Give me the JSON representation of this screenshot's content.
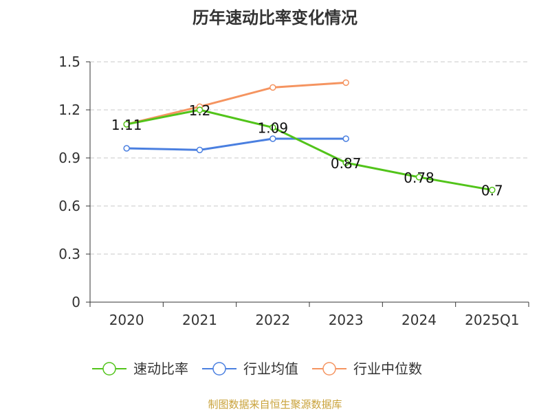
{
  "title": "历年速动比率变化情况",
  "source": "制图数据来自恒生聚源数据库",
  "chart_data": {
    "type": "line",
    "categories": [
      "2020",
      "2021",
      "2022",
      "2023",
      "2024",
      "2025Q1"
    ],
    "ylim": [
      0,
      1.5
    ],
    "y_ticks": [
      "0",
      "0.3",
      "0.6",
      "0.9",
      "1.2",
      "1.5"
    ],
    "grid": true,
    "legend_position": "bottom",
    "series": [
      {
        "name": "速动比率",
        "color": "#52c41a",
        "values": [
          1.11,
          1.2,
          1.09,
          0.87,
          0.78,
          0.7
        ],
        "labels": [
          "1.11",
          "1.2",
          "1.09",
          "0.87",
          "0.78",
          "0.7"
        ]
      },
      {
        "name": "行业均值",
        "color": "#4a7fe0",
        "values": [
          0.96,
          0.95,
          1.02,
          1.02,
          null,
          null
        ]
      },
      {
        "name": "行业中位数",
        "color": "#f59460",
        "values": [
          1.11,
          1.22,
          1.34,
          1.37,
          null,
          null
        ]
      }
    ]
  }
}
